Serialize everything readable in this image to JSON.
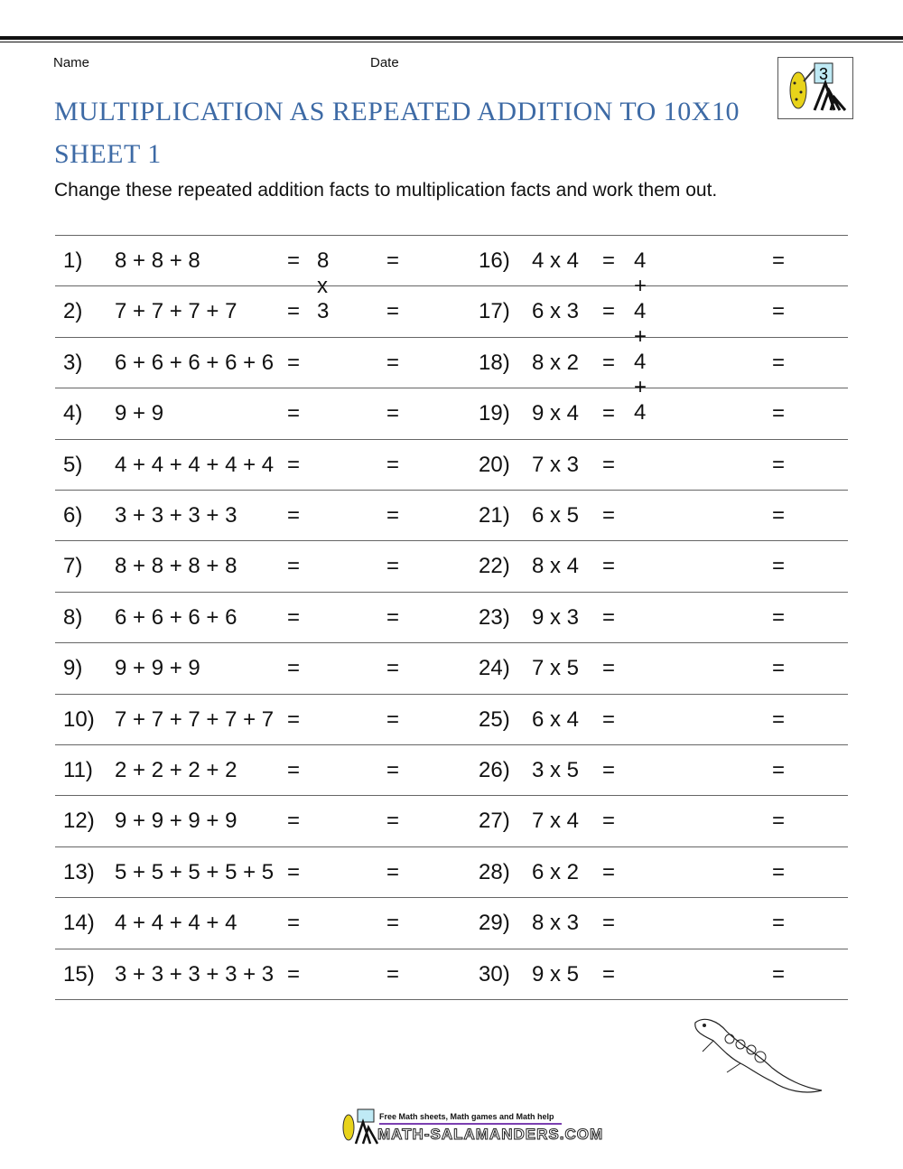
{
  "header": {
    "name_label": "Name",
    "date_label": "Date",
    "title_line1": "MULTIPLICATION AS REPEATED ADDITION TO 10X10",
    "title_line2": "SHEET 1",
    "instructions": "Change these repeated addition facts to multiplication facts and work them out.",
    "logo_grade": "3"
  },
  "left_questions": [
    {
      "num": "1)",
      "expr": "8 + 8 + 8",
      "eq1": "=",
      "answer": "8 x 3",
      "eq2": "="
    },
    {
      "num": "2)",
      "expr": "7 + 7 + 7 + 7",
      "eq1": "=",
      "answer": "",
      "eq2": "="
    },
    {
      "num": "3)",
      "expr": "6 + 6 + 6 + 6 + 6",
      "eq1": "=",
      "answer": "",
      "eq2": "="
    },
    {
      "num": "4)",
      "expr": "9 + 9",
      "eq1": "=",
      "answer": "",
      "eq2": "="
    },
    {
      "num": "5)",
      "expr": "4 + 4 + 4 + 4 + 4",
      "eq1": "=",
      "answer": "",
      "eq2": "="
    },
    {
      "num": "6)",
      "expr": "3 + 3 + 3 + 3",
      "eq1": "=",
      "answer": "",
      "eq2": "="
    },
    {
      "num": "7)",
      "expr": "8 + 8 + 8 + 8",
      "eq1": "=",
      "answer": "",
      "eq2": "="
    },
    {
      "num": "8)",
      "expr": "6 + 6 + 6 + 6",
      "eq1": "=",
      "answer": "",
      "eq2": "="
    },
    {
      "num": "9)",
      "expr": "9 + 9 + 9",
      "eq1": "=",
      "answer": "",
      "eq2": "="
    },
    {
      "num": "10)",
      "expr": "7 + 7 + 7 + 7 + 7",
      "eq1": "=",
      "answer": "",
      "eq2": "="
    },
    {
      "num": "11)",
      "expr": "2 + 2 + 2 + 2",
      "eq1": "=",
      "answer": "",
      "eq2": "="
    },
    {
      "num": "12)",
      "expr": "9 + 9 + 9 + 9",
      "eq1": "=",
      "answer": "",
      "eq2": "="
    },
    {
      "num": "13)",
      "expr": "5 + 5 + 5 + 5 + 5",
      "eq1": "=",
      "answer": "",
      "eq2": "="
    },
    {
      "num": "14)",
      "expr": "4 + 4 + 4 + 4",
      "eq1": "=",
      "answer": "",
      "eq2": "="
    },
    {
      "num": "15)",
      "expr": "3 + 3 + 3 + 3 + 3",
      "eq1": "=",
      "answer": "",
      "eq2": "="
    }
  ],
  "right_questions": [
    {
      "num": "16)",
      "expr": "4 x 4",
      "eq1": "=",
      "answer": "4 + 4 + 4 + 4",
      "eq2": "="
    },
    {
      "num": "17)",
      "expr": "6 x 3",
      "eq1": "=",
      "answer": "",
      "eq2": "="
    },
    {
      "num": "18)",
      "expr": "8 x 2",
      "eq1": "=",
      "answer": "",
      "eq2": "="
    },
    {
      "num": "19)",
      "expr": "9 x 4",
      "eq1": "=",
      "answer": "",
      "eq2": "="
    },
    {
      "num": "20)",
      "expr": "7 x 3",
      "eq1": "=",
      "answer": "",
      "eq2": "="
    },
    {
      "num": "21)",
      "expr": "6 x 5",
      "eq1": "=",
      "answer": "",
      "eq2": "="
    },
    {
      "num": "22)",
      "expr": "8 x 4",
      "eq1": "=",
      "answer": "",
      "eq2": "="
    },
    {
      "num": "23)",
      "expr": "9 x 3",
      "eq1": "=",
      "answer": "",
      "eq2": "="
    },
    {
      "num": "24)",
      "expr": "7 x 5",
      "eq1": "=",
      "answer": "",
      "eq2": "="
    },
    {
      "num": "25)",
      "expr": "6 x 4",
      "eq1": "=",
      "answer": "",
      "eq2": "="
    },
    {
      "num": "26)",
      "expr": "3 x 5",
      "eq1": "=",
      "answer": "",
      "eq2": "="
    },
    {
      "num": "27)",
      "expr": "7 x 4",
      "eq1": "=",
      "answer": "",
      "eq2": "="
    },
    {
      "num": "28)",
      "expr": "6 x 2",
      "eq1": "=",
      "answer": "",
      "eq2": "="
    },
    {
      "num": "29)",
      "expr": "8 x 3",
      "eq1": "=",
      "answer": "",
      "eq2": "="
    },
    {
      "num": "30)",
      "expr": "9 x 5",
      "eq1": "=",
      "answer": "",
      "eq2": "="
    }
  ],
  "footer": {
    "tagline": "Free Math sheets, Math games and Math help",
    "site": "MATH-SALAMANDERS.COM"
  },
  "colors": {
    "title": "#3d6aa5",
    "footer_line": "#7b3fb0"
  }
}
